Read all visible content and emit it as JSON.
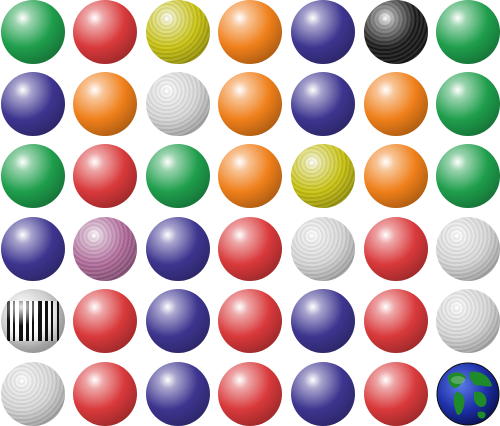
{
  "colors": {
    "green": "#1f9e4c",
    "red": "#d9393b",
    "yellow": "#c8c20f",
    "orange": "#ef7f1a",
    "blue": "#3d358f",
    "black": "#1b1b1b",
    "white": "#d6d6d6",
    "pink": "#b06a9a"
  },
  "grid": {
    "rows": [
      [
        "green-ball",
        "red-ball",
        "yellow-ball",
        "orange-ball",
        "blue-ball",
        "black-ball",
        "green-ball"
      ],
      [
        "blue-ball",
        "orange-ball",
        "white-ball",
        "orange-ball",
        "blue-ball",
        "orange-ball",
        "green-ball"
      ],
      [
        "green-ball",
        "red-ball",
        "green-ball",
        "orange-ball",
        "yellow-ball",
        "orange-ball",
        "green-ball"
      ],
      [
        "blue-ball",
        "pink-ball",
        "blue-ball",
        "red-ball",
        "white-ball",
        "red-ball",
        "white-ball"
      ],
      [
        "barcode-ball",
        "red-ball",
        "blue-ball",
        "red-ball",
        "blue-ball",
        "red-ball",
        "white-ball"
      ],
      [
        "white-ball",
        "red-ball",
        "blue-ball",
        "red-ball",
        "blue-ball",
        "red-ball",
        "globe-ball"
      ]
    ]
  }
}
